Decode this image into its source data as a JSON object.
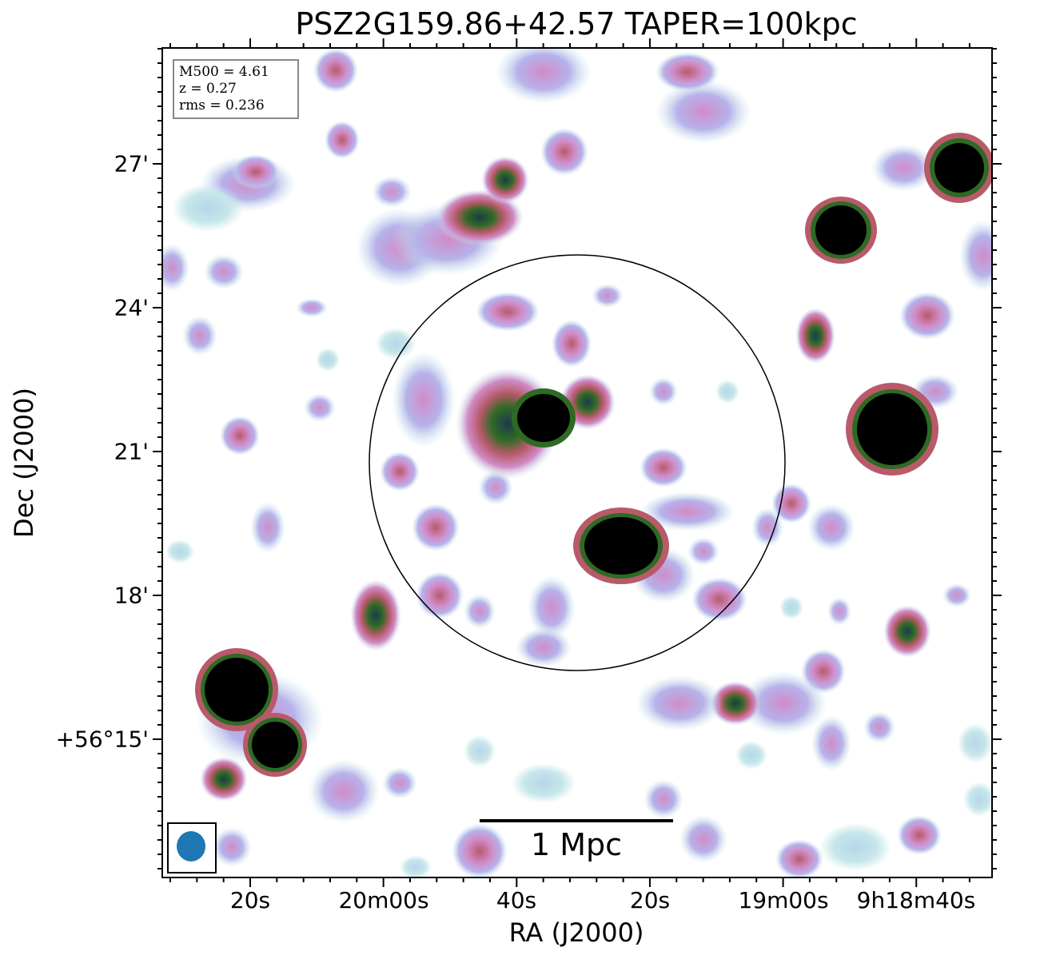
{
  "figure": {
    "title": "PSZ2G159.86+42.57 TAPER=100kpc",
    "xlabel": "RA (J2000)",
    "ylabel": "Dec (J2000)",
    "x_ticks": [
      "20s",
      "20m00s",
      "40s",
      "20s",
      "19m00s",
      "9h18m40s"
    ],
    "y_ticks": [
      "27'",
      "24'",
      "21'",
      "18'",
      "+56°15'"
    ],
    "info": {
      "mass": "M500 = 4.61",
      "redshift": "z = 0.27",
      "rms": "rms = 0.236"
    },
    "scalebar_label": "1 Mpc",
    "colors": {
      "background": "#ffffff",
      "faint": "#c6e6ea",
      "low": "#b7b2ea",
      "mid": "#d08cc8",
      "high": "#b85a6a",
      "brighter": "#2f6a25",
      "peak": "#000000",
      "beam": "#1f77b4"
    }
  }
}
